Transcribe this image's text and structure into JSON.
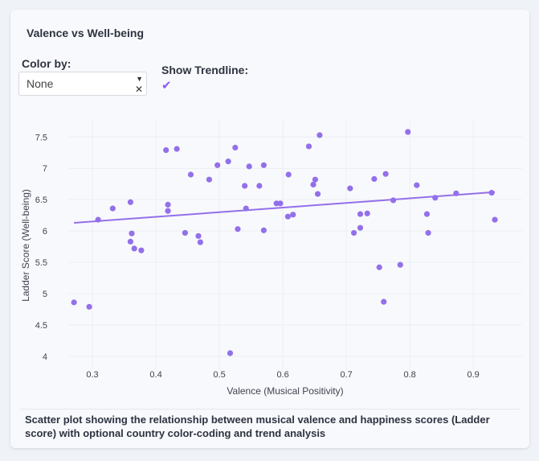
{
  "card": {
    "title": "Valence vs Well-being",
    "color_by_label": "Color by:",
    "color_by_value": "None",
    "trendline_label": "Show Trendline:",
    "trendline_checked": true,
    "caption": "Scatter plot showing the relationship between musical valence and happiness scores (Ladder score) with optional country color-coding and trend analysis"
  },
  "icons": {
    "dropdown": "caret-down-icon",
    "clear": "clear-x-icon",
    "check": "checkmark-icon"
  },
  "chart_data": {
    "type": "scatter",
    "title": "",
    "xlabel": "Valence (Musical Positivity)",
    "ylabel": "Ladder Score (Well-being)",
    "xlim": [
      0.262,
      0.977
    ],
    "ylim": [
      3.78,
      7.76
    ],
    "x_ticks": [
      "0.3",
      "0.4",
      "0.5",
      "0.6",
      "0.7",
      "0.8",
      "0.9"
    ],
    "y_ticks": [
      "4",
      "4.5",
      "5",
      "5.5",
      "6",
      "6.5",
      "7",
      "7.5"
    ],
    "grid": true,
    "color": "#9370ea",
    "points": [
      [
        0.271,
        4.86
      ],
      [
        0.295,
        4.79
      ],
      [
        0.309,
        6.18
      ],
      [
        0.332,
        6.36
      ],
      [
        0.36,
        6.46
      ],
      [
        0.362,
        5.96
      ],
      [
        0.36,
        5.83
      ],
      [
        0.366,
        5.72
      ],
      [
        0.377,
        5.69
      ],
      [
        0.416,
        7.29
      ],
      [
        0.433,
        7.31
      ],
      [
        0.419,
        6.42
      ],
      [
        0.419,
        6.32
      ],
      [
        0.446,
        5.97
      ],
      [
        0.455,
        6.9
      ],
      [
        0.467,
        5.92
      ],
      [
        0.47,
        5.82
      ],
      [
        0.484,
        6.82
      ],
      [
        0.497,
        7.05
      ],
      [
        0.514,
        7.11
      ],
      [
        0.517,
        4.05
      ],
      [
        0.525,
        7.33
      ],
      [
        0.529,
        6.03
      ],
      [
        0.54,
        6.72
      ],
      [
        0.542,
        6.36
      ],
      [
        0.547,
        7.03
      ],
      [
        0.563,
        6.72
      ],
      [
        0.57,
        6.01
      ],
      [
        0.57,
        7.05
      ],
      [
        0.59,
        6.44
      ],
      [
        0.596,
        6.44
      ],
      [
        0.608,
        6.23
      ],
      [
        0.609,
        6.9
      ],
      [
        0.616,
        6.26
      ],
      [
        0.641,
        7.35
      ],
      [
        0.648,
        6.74
      ],
      [
        0.651,
        6.82
      ],
      [
        0.655,
        6.59
      ],
      [
        0.658,
        7.53
      ],
      [
        0.706,
        6.68
      ],
      [
        0.712,
        5.97
      ],
      [
        0.722,
        6.27
      ],
      [
        0.722,
        6.05
      ],
      [
        0.733,
        6.28
      ],
      [
        0.744,
        6.83
      ],
      [
        0.752,
        5.42
      ],
      [
        0.759,
        4.87
      ],
      [
        0.762,
        6.91
      ],
      [
        0.774,
        6.49
      ],
      [
        0.785,
        5.46
      ],
      [
        0.797,
        7.58
      ],
      [
        0.811,
        6.73
      ],
      [
        0.827,
        6.27
      ],
      [
        0.829,
        5.97
      ],
      [
        0.84,
        6.53
      ],
      [
        0.873,
        6.6
      ],
      [
        0.929,
        6.61
      ],
      [
        0.934,
        6.18
      ]
    ],
    "trendline": {
      "x": [
        0.271,
        0.934
      ],
      "y": [
        6.13,
        6.62
      ]
    }
  }
}
